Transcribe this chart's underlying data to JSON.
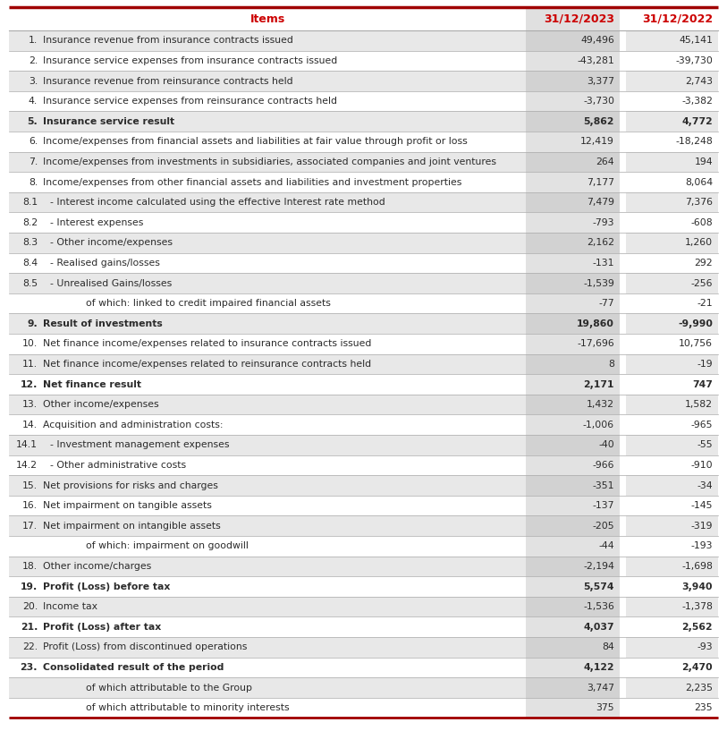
{
  "title_col": "Items",
  "col2": "31/12/2023",
  "col3": "31/12/2022",
  "header_color": "#cc0000",
  "text_color": "#2b2b2b",
  "bg_white": "#ffffff",
  "bg_light_gray": "#e8e8e8",
  "col2_bg": "#d8d8d8",
  "col2_bg_on_gray": "#cbcbcb",
  "top_line_color": "#a00000",
  "sep_color": "#aaaaaa",
  "bottom_line_color": "#a00000",
  "rows": [
    {
      "num": "1.",
      "label": "Insurance revenue from insurance contracts issued",
      "v2023": "49,496",
      "v2022": "45,141",
      "bold": false,
      "indent": 0,
      "gray": false
    },
    {
      "num": "2.",
      "label": "Insurance service expenses from insurance contracts issued",
      "v2023": "-43,281",
      "v2022": "-39,730",
      "bold": false,
      "indent": 0,
      "gray": false
    },
    {
      "num": "3.",
      "label": "Insurance revenue from reinsurance contracts held",
      "v2023": "3,377",
      "v2022": "2,743",
      "bold": false,
      "indent": 0,
      "gray": false
    },
    {
      "num": "4.",
      "label": "Insurance service expenses from reinsurance contracts held",
      "v2023": "-3,730",
      "v2022": "-3,382",
      "bold": false,
      "indent": 0,
      "gray": false
    },
    {
      "num": "5.",
      "label": "Insurance service result",
      "v2023": "5,862",
      "v2022": "4,772",
      "bold": true,
      "indent": 0,
      "gray": false
    },
    {
      "num": "6.",
      "label": "Income/expenses from financial assets and liabilities at fair value through profit or loss",
      "v2023": "12,419",
      "v2022": "-18,248",
      "bold": false,
      "indent": 0,
      "gray": false
    },
    {
      "num": "7.",
      "label": "Income/expenses from investments in subsidiaries, associated companies and joint ventures",
      "v2023": "264",
      "v2022": "194",
      "bold": false,
      "indent": 0,
      "gray": false
    },
    {
      "num": "8.",
      "label": "Income/expenses from other financial assets and liabilities and investment properties",
      "v2023": "7,177",
      "v2022": "8,064",
      "bold": false,
      "indent": 0,
      "gray": false
    },
    {
      "num": "8.1",
      "label": "- Interest income calculated using the effective Interest rate method",
      "v2023": "7,479",
      "v2022": "7,376",
      "bold": false,
      "indent": 1,
      "gray": false
    },
    {
      "num": "8.2",
      "label": "- Interest expenses",
      "v2023": "-793",
      "v2022": "-608",
      "bold": false,
      "indent": 1,
      "gray": false
    },
    {
      "num": "8.3",
      "label": "- Other income/expenses",
      "v2023": "2,162",
      "v2022": "1,260",
      "bold": false,
      "indent": 1,
      "gray": false
    },
    {
      "num": "8.4",
      "label": "- Realised gains/losses",
      "v2023": "-131",
      "v2022": "292",
      "bold": false,
      "indent": 1,
      "gray": false
    },
    {
      "num": "8.5",
      "label": "- Unrealised Gains/losses",
      "v2023": "-1,539",
      "v2022": "-256",
      "bold": false,
      "indent": 1,
      "gray": false
    },
    {
      "num": "",
      "label": "of which: linked to credit impaired financial assets",
      "v2023": "-77",
      "v2022": "-21",
      "bold": false,
      "indent": 2,
      "gray": false
    },
    {
      "num": "9.",
      "label": "Result of investments",
      "v2023": "19,860",
      "v2022": "-9,990",
      "bold": true,
      "indent": 0,
      "gray": false
    },
    {
      "num": "10.",
      "label": "Net finance income/expenses related to insurance contracts issued",
      "v2023": "-17,696",
      "v2022": "10,756",
      "bold": false,
      "indent": 0,
      "gray": false
    },
    {
      "num": "11.",
      "label": "Net finance income/expenses related to reinsurance contracts held",
      "v2023": "8",
      "v2022": "-19",
      "bold": false,
      "indent": 0,
      "gray": false
    },
    {
      "num": "12.",
      "label": "Net finance result",
      "v2023": "2,171",
      "v2022": "747",
      "bold": true,
      "indent": 0,
      "gray": false
    },
    {
      "num": "13.",
      "label": "Other income/expenses",
      "v2023": "1,432",
      "v2022": "1,582",
      "bold": false,
      "indent": 0,
      "gray": false
    },
    {
      "num": "14.",
      "label": "Acquisition and administration costs:",
      "v2023": "-1,006",
      "v2022": "-965",
      "bold": false,
      "indent": 0,
      "gray": false
    },
    {
      "num": "14.1",
      "label": "- Investment management expenses",
      "v2023": "-40",
      "v2022": "-55",
      "bold": false,
      "indent": 1,
      "gray": false
    },
    {
      "num": "14.2",
      "label": "- Other administrative costs",
      "v2023": "-966",
      "v2022": "-910",
      "bold": false,
      "indent": 1,
      "gray": false
    },
    {
      "num": "15.",
      "label": "Net provisions for risks and charges",
      "v2023": "-351",
      "v2022": "-34",
      "bold": false,
      "indent": 0,
      "gray": false
    },
    {
      "num": "16.",
      "label": "Net impairment on tangible assets",
      "v2023": "-137",
      "v2022": "-145",
      "bold": false,
      "indent": 0,
      "gray": false
    },
    {
      "num": "17.",
      "label": "Net impairment on intangible assets",
      "v2023": "-205",
      "v2022": "-319",
      "bold": false,
      "indent": 0,
      "gray": false
    },
    {
      "num": "",
      "label": "of which: impairment on goodwill",
      "v2023": "-44",
      "v2022": "-193",
      "bold": false,
      "indent": 2,
      "gray": false
    },
    {
      "num": "18.",
      "label": "Other income/charges",
      "v2023": "-2,194",
      "v2022": "-1,698",
      "bold": false,
      "indent": 0,
      "gray": false
    },
    {
      "num": "19.",
      "label": "Profit (Loss) before tax",
      "v2023": "5,574",
      "v2022": "3,940",
      "bold": true,
      "indent": 0,
      "gray": false
    },
    {
      "num": "20.",
      "label": "Income tax",
      "v2023": "-1,536",
      "v2022": "-1,378",
      "bold": false,
      "indent": 0,
      "gray": false
    },
    {
      "num": "21.",
      "label": "Profit (Loss) after tax",
      "v2023": "4,037",
      "v2022": "2,562",
      "bold": true,
      "indent": 0,
      "gray": false
    },
    {
      "num": "22.",
      "label": "Profit (Loss) from discontinued operations",
      "v2023": "84",
      "v2022": "-93",
      "bold": false,
      "indent": 0,
      "gray": false
    },
    {
      "num": "23.",
      "label": "Consolidated result of the period",
      "v2023": "4,122",
      "v2022": "2,470",
      "bold": true,
      "indent": 0,
      "gray": false
    },
    {
      "num": "",
      "label": "of which attributable to the Group",
      "v2023": "3,747",
      "v2022": "2,235",
      "bold": false,
      "indent": 2,
      "gray": false
    },
    {
      "num": "",
      "label": "of which attributable to minority interests",
      "v2023": "375",
      "v2022": "235",
      "bold": false,
      "indent": 2,
      "gray": false
    }
  ],
  "col2_shade_rows": [
    0,
    2,
    4,
    6,
    8,
    10,
    12,
    14,
    16,
    18,
    20,
    22,
    24,
    26,
    28,
    30,
    32
  ],
  "all_shade_rows": [
    0,
    2,
    4,
    6,
    8,
    10,
    12,
    14,
    16,
    18,
    20,
    22,
    24,
    26,
    28,
    30,
    32
  ]
}
